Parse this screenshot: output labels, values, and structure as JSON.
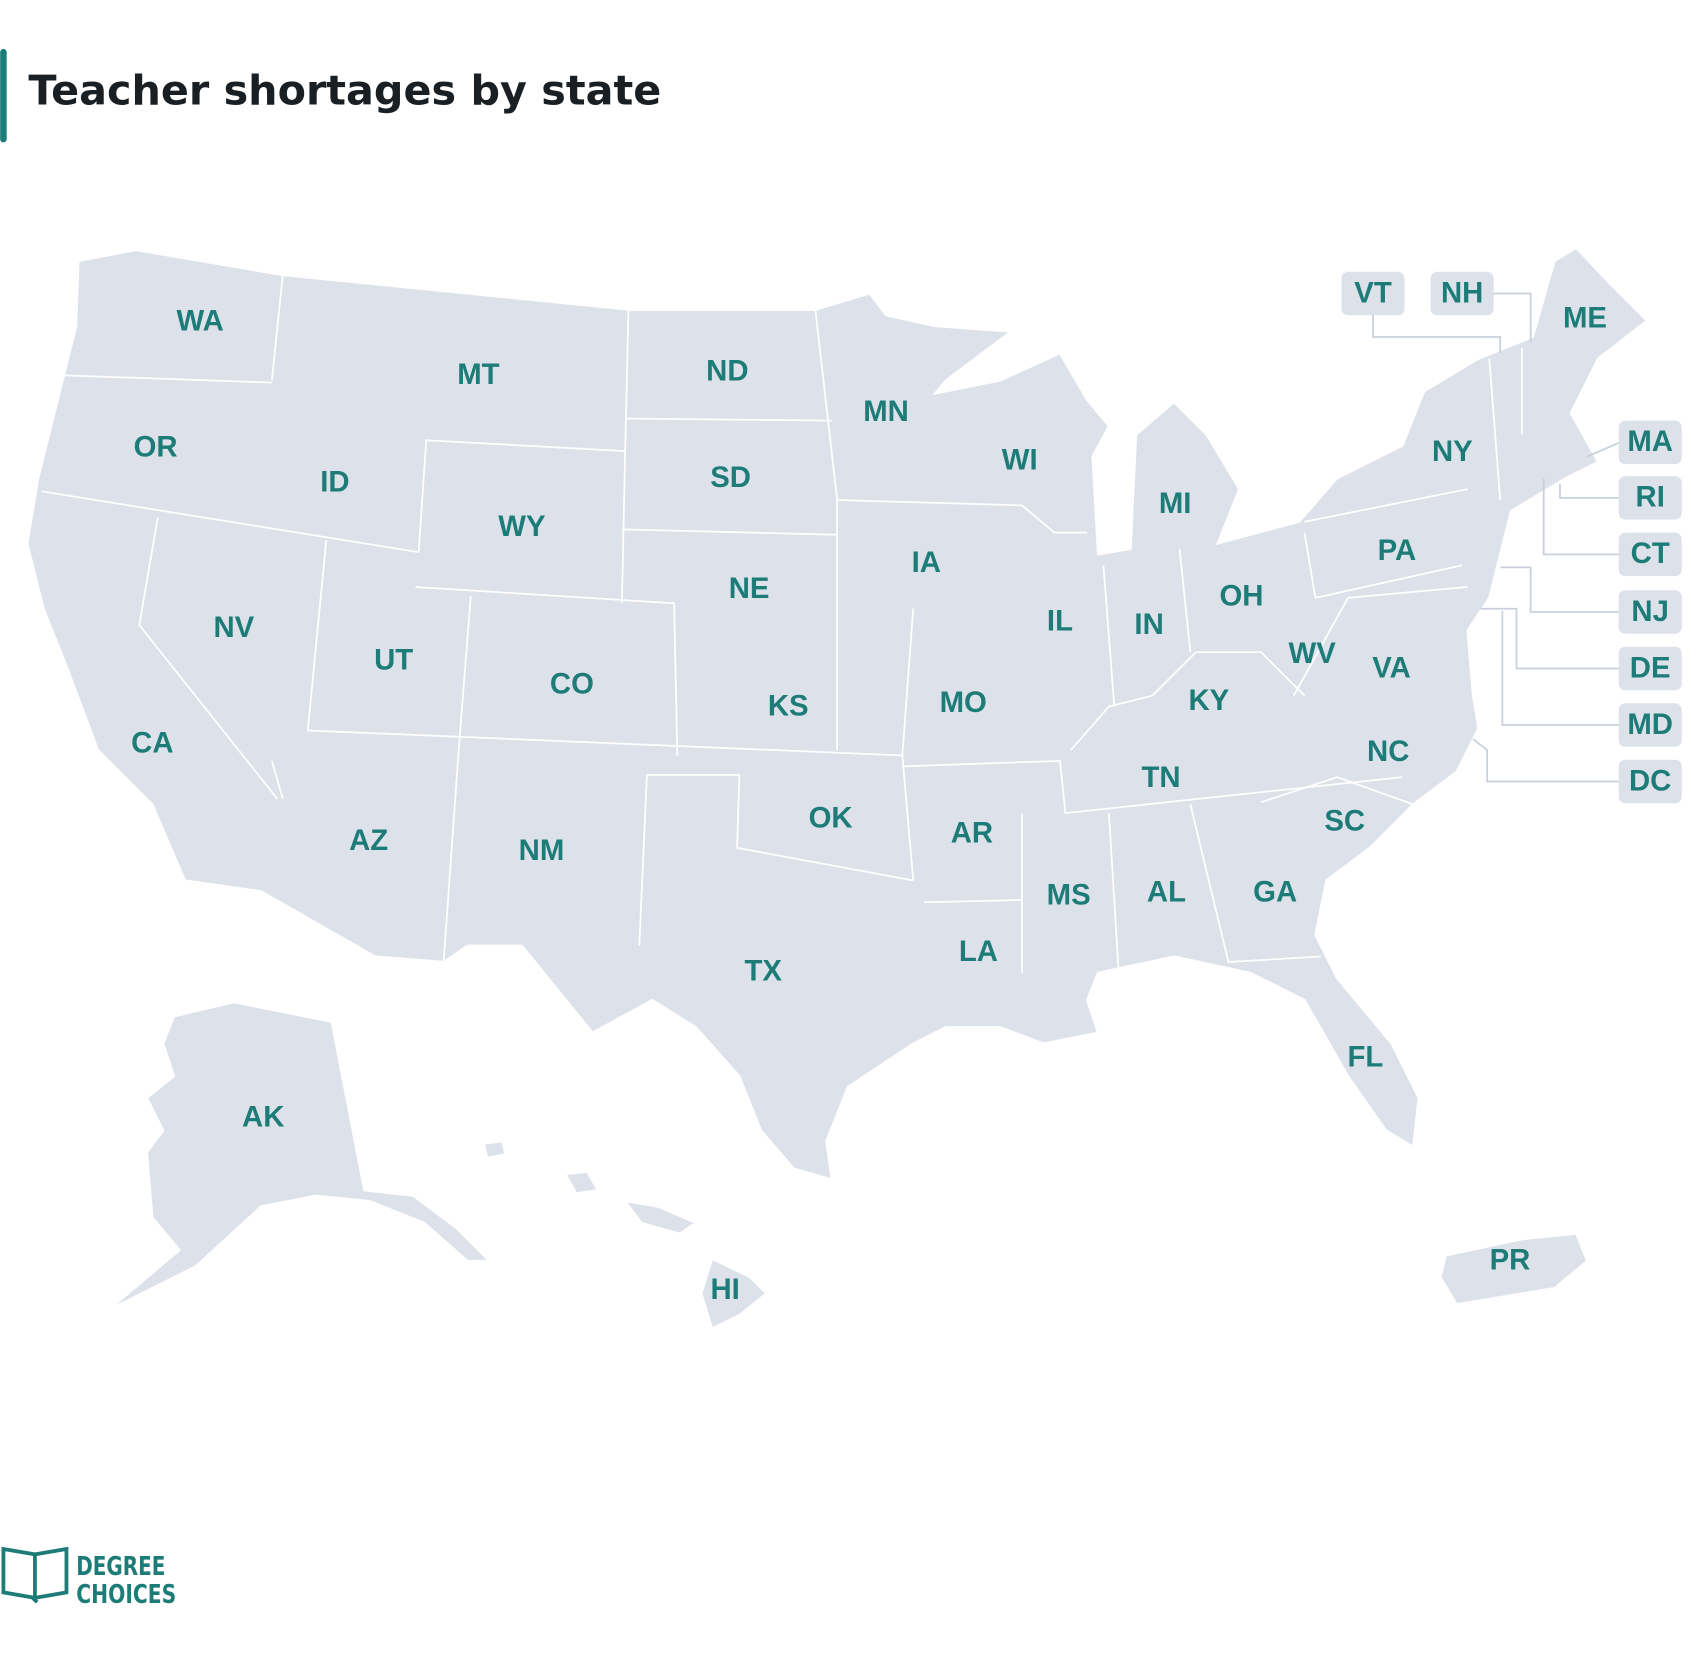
{
  "header": {
    "title": "Teacher shortages by state"
  },
  "map": {
    "states": [
      "WA",
      "OR",
      "CA",
      "NV",
      "ID",
      "MT",
      "WY",
      "UT",
      "AZ",
      "CO",
      "NM",
      "ND",
      "SD",
      "NE",
      "KS",
      "OK",
      "TX",
      "MN",
      "IA",
      "MO",
      "AR",
      "LA",
      "WI",
      "IL",
      "MI",
      "IN",
      "OH",
      "KY",
      "TN",
      "MS",
      "AL",
      "GA",
      "FL",
      "SC",
      "NC",
      "VA",
      "WV",
      "PA",
      "NY",
      "ME",
      "AK",
      "HI",
      "PR",
      "VT",
      "NH",
      "MA",
      "RI",
      "CT",
      "NJ",
      "DE",
      "MD",
      "DC"
    ]
  },
  "logo": {
    "line1": "DEGREE",
    "line2": "CHOICES"
  }
}
